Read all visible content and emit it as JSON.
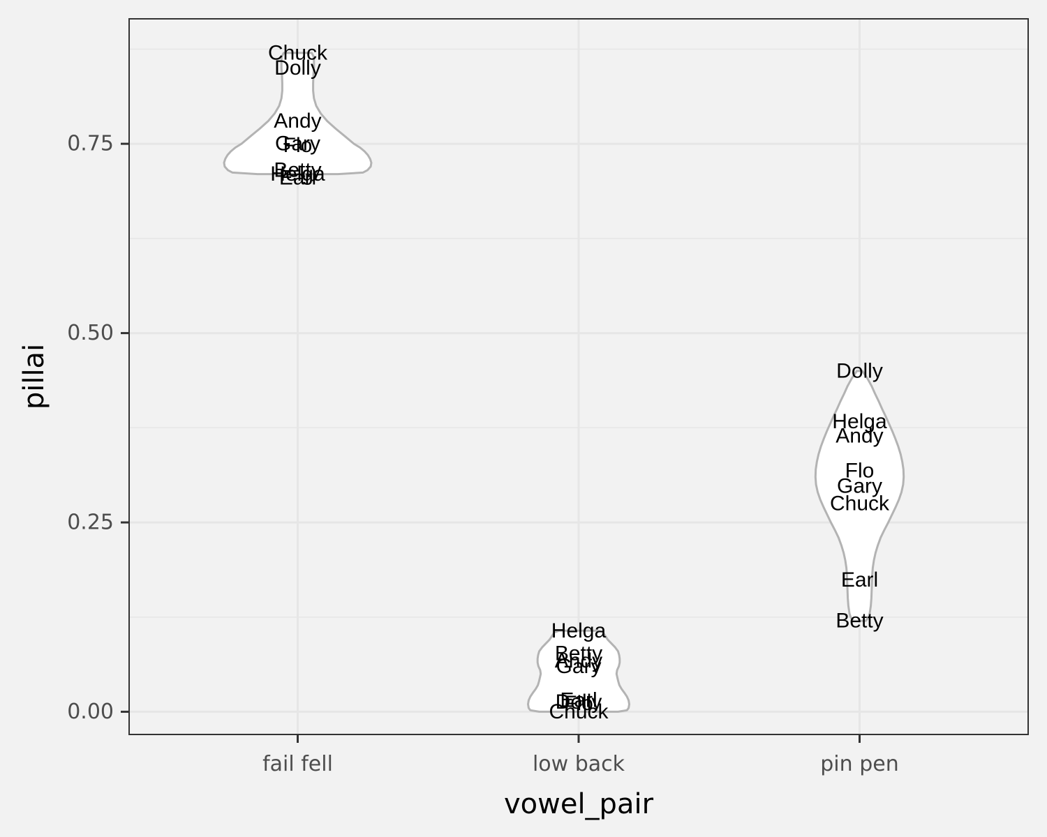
{
  "chart_data": {
    "type": "violin",
    "xlabel": "vowel_pair",
    "ylabel": "pillai",
    "categories": [
      "fail fell",
      "low back",
      "pin pen"
    ],
    "ylim": [
      -0.03,
      0.915
    ],
    "yticks": [
      0.0,
      0.25,
      0.5,
      0.75
    ],
    "ytick_labels": [
      "0.00",
      "0.25",
      "0.50",
      "0.75"
    ],
    "grid": true,
    "theme": "bw",
    "colors": {
      "background": "#f2f2f2",
      "panel": "#f2f2f2",
      "grid": "#e6e6e6",
      "violin_fill": "#ffffff",
      "violin_outline": "#b3b3b3",
      "border": "#333333"
    },
    "series": [
      {
        "category": "fail fell",
        "points": [
          {
            "label": "Chuck",
            "value": 0.87
          },
          {
            "label": "Dolly",
            "value": 0.85
          },
          {
            "label": "Andy",
            "value": 0.78
          },
          {
            "label": "Gary",
            "value": 0.75
          },
          {
            "label": "Flo",
            "value": 0.748
          },
          {
            "label": "Betty",
            "value": 0.715
          },
          {
            "label": "Helga",
            "value": 0.71
          },
          {
            "label": "Earl",
            "value": 0.705
          }
        ],
        "violin": {
          "y": [
            0.71,
            0.712,
            0.715,
            0.72,
            0.725,
            0.73,
            0.735,
            0.74,
            0.745,
            0.75,
            0.76,
            0.77,
            0.78,
            0.79,
            0.8,
            0.81,
            0.82,
            0.83,
            0.84,
            0.85,
            0.86,
            0.865,
            0.87
          ],
          "half_width": [
            0.143,
            0.232,
            0.248,
            0.26,
            0.262,
            0.258,
            0.25,
            0.238,
            0.222,
            0.2,
            0.168,
            0.135,
            0.105,
            0.082,
            0.066,
            0.058,
            0.055,
            0.055,
            0.056,
            0.058,
            0.058,
            0.057,
            0.05
          ]
        }
      },
      {
        "category": "low back",
        "points": [
          {
            "label": "Helga",
            "value": 0.107
          },
          {
            "label": "Betty",
            "value": 0.077
          },
          {
            "label": "Andy",
            "value": 0.067
          },
          {
            "label": "Gary",
            "value": 0.06
          },
          {
            "label": "Earl",
            "value": 0.015
          },
          {
            "label": "Dolly",
            "value": 0.013
          },
          {
            "label": "Flo",
            "value": 0.011
          },
          {
            "label": "Chuck",
            "value": 0.0
          }
        ],
        "violin": {
          "y": [
            0.0,
            0.002,
            0.005,
            0.01,
            0.015,
            0.02,
            0.025,
            0.03,
            0.035,
            0.04,
            0.045,
            0.05,
            0.055,
            0.06,
            0.065,
            0.07,
            0.075,
            0.08,
            0.085,
            0.09,
            0.095,
            0.1,
            0.105,
            0.107
          ],
          "half_width": [
            0.14,
            0.172,
            0.178,
            0.18,
            0.178,
            0.172,
            0.163,
            0.153,
            0.145,
            0.141,
            0.138,
            0.135,
            0.137,
            0.143,
            0.146,
            0.146,
            0.144,
            0.14,
            0.13,
            0.117,
            0.104,
            0.095,
            0.086,
            0.07
          ]
        }
      },
      {
        "category": "pin pen",
        "points": [
          {
            "label": "Dolly",
            "value": 0.45
          },
          {
            "label": "Helga",
            "value": 0.383
          },
          {
            "label": "Andy",
            "value": 0.364
          },
          {
            "label": "Flo",
            "value": 0.318
          },
          {
            "label": "Gary",
            "value": 0.298
          },
          {
            "label": "Chuck",
            "value": 0.275
          },
          {
            "label": "Earl",
            "value": 0.174
          },
          {
            "label": "Betty",
            "value": 0.12
          }
        ],
        "violin": {
          "y": [
            0.12,
            0.125,
            0.13,
            0.14,
            0.15,
            0.16,
            0.17,
            0.18,
            0.19,
            0.2,
            0.21,
            0.22,
            0.23,
            0.24,
            0.25,
            0.26,
            0.27,
            0.28,
            0.29,
            0.3,
            0.31,
            0.32,
            0.33,
            0.34,
            0.35,
            0.36,
            0.37,
            0.38,
            0.39,
            0.4,
            0.41,
            0.42,
            0.43,
            0.44,
            0.45
          ],
          "half_width": [
            0.022,
            0.032,
            0.036,
            0.04,
            0.042,
            0.043,
            0.044,
            0.045,
            0.047,
            0.051,
            0.057,
            0.065,
            0.075,
            0.088,
            0.102,
            0.115,
            0.128,
            0.14,
            0.149,
            0.155,
            0.157,
            0.156,
            0.152,
            0.146,
            0.138,
            0.128,
            0.117,
            0.105,
            0.093,
            0.08,
            0.068,
            0.055,
            0.043,
            0.028,
            0.01
          ]
        }
      }
    ]
  }
}
